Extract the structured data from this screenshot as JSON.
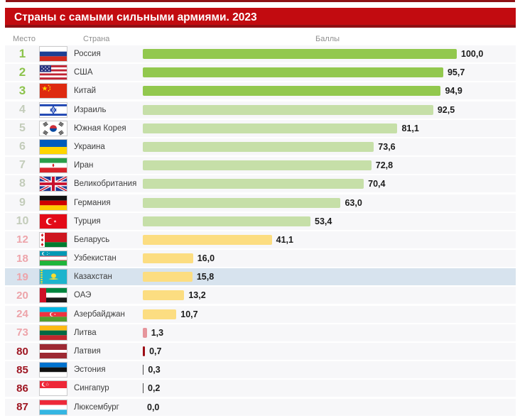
{
  "header": {
    "title": "Страны с самыми сильными армиями. 2023"
  },
  "columns": {
    "rank_label": "Место",
    "country_label": "Страна",
    "score_label": "Баллы"
  },
  "colors": {
    "title_bar": "#c20b10",
    "title_bar_border": "#8e1014",
    "top_line": "#8e1014",
    "row_bg": "#f7f7f9",
    "highlight_row_bg": "#d7e3ee",
    "rank_green": "#8cc34b",
    "rank_pale": "#c3ccba",
    "rank_pink": "#eda4aa",
    "rank_darkred": "#9e1622",
    "bar_green": "#92c84e",
    "bar_lightgreen": "#c6dfa8",
    "bar_yellow": "#fcdd81",
    "bar_pink": "#e6959c",
    "bar_darkred": "#9c0d15",
    "bar_gray": "#4a4a4a"
  },
  "chart_data": {
    "type": "bar",
    "orientation": "horizontal",
    "title": "Страны с самыми сильными армиями. 2023",
    "value_axis": {
      "min": 0,
      "max": 100
    },
    "highlighted_country": "Казахстан",
    "rows": [
      {
        "rank": "1",
        "country": "Россия",
        "flag": "ru",
        "value": 100.0,
        "value_label": "100,0",
        "rank_tier": "green",
        "bar": "bar_green",
        "highlight": false
      },
      {
        "rank": "2",
        "country": "США",
        "flag": "us",
        "value": 95.7,
        "value_label": "95,7",
        "rank_tier": "green",
        "bar": "bar_green",
        "highlight": false
      },
      {
        "rank": "3",
        "country": "Китай",
        "flag": "cn",
        "value": 94.9,
        "value_label": "94,9",
        "rank_tier": "green",
        "bar": "bar_green",
        "highlight": false
      },
      {
        "rank": "4",
        "country": "Израиль",
        "flag": "il",
        "value": 92.5,
        "value_label": "92,5",
        "rank_tier": "pale",
        "bar": "bar_lightgreen",
        "highlight": false
      },
      {
        "rank": "5",
        "country": "Южная Корея",
        "flag": "kr",
        "value": 81.1,
        "value_label": "81,1",
        "rank_tier": "pale",
        "bar": "bar_lightgreen",
        "highlight": false
      },
      {
        "rank": "6",
        "country": "Украина",
        "flag": "ua",
        "value": 73.6,
        "value_label": "73,6",
        "rank_tier": "pale",
        "bar": "bar_lightgreen",
        "highlight": false
      },
      {
        "rank": "7",
        "country": "Иран",
        "flag": "ir",
        "value": 72.8,
        "value_label": "72,8",
        "rank_tier": "pale",
        "bar": "bar_lightgreen",
        "highlight": false
      },
      {
        "rank": "8",
        "country": "Великобритания",
        "flag": "gb",
        "value": 70.4,
        "value_label": "70,4",
        "rank_tier": "pale",
        "bar": "bar_lightgreen",
        "highlight": false
      },
      {
        "rank": "9",
        "country": "Германия",
        "flag": "de",
        "value": 63.0,
        "value_label": "63,0",
        "rank_tier": "pale",
        "bar": "bar_lightgreen",
        "highlight": false
      },
      {
        "rank": "10",
        "country": "Турция",
        "flag": "tr",
        "value": 53.4,
        "value_label": "53,4",
        "rank_tier": "pale",
        "bar": "bar_lightgreen",
        "highlight": false
      },
      {
        "rank": "12",
        "country": "Беларусь",
        "flag": "by",
        "value": 41.1,
        "value_label": "41,1",
        "rank_tier": "pink",
        "bar": "bar_yellow",
        "highlight": false
      },
      {
        "rank": "18",
        "country": "Узбекистан",
        "flag": "uz",
        "value": 16.0,
        "value_label": "16,0",
        "rank_tier": "pink",
        "bar": "bar_yellow",
        "highlight": false
      },
      {
        "rank": "19",
        "country": "Казахстан",
        "flag": "kz",
        "value": 15.8,
        "value_label": "15,8",
        "rank_tier": "pink",
        "bar": "bar_yellow",
        "highlight": true
      },
      {
        "rank": "20",
        "country": "ОАЭ",
        "flag": "ae",
        "value": 13.2,
        "value_label": "13,2",
        "rank_tier": "pink",
        "bar": "bar_yellow",
        "highlight": false
      },
      {
        "rank": "24",
        "country": "Азербайджан",
        "flag": "az",
        "value": 10.7,
        "value_label": "10,7",
        "rank_tier": "pink",
        "bar": "bar_yellow",
        "highlight": false
      },
      {
        "rank": "73",
        "country": "Литва",
        "flag": "lt",
        "value": 1.3,
        "value_label": "1,3",
        "rank_tier": "pink",
        "bar": "bar_pink",
        "highlight": false
      },
      {
        "rank": "80",
        "country": "Латвия",
        "flag": "lv",
        "value": 0.7,
        "value_label": "0,7",
        "rank_tier": "darkred",
        "bar": "bar_darkred",
        "highlight": false
      },
      {
        "rank": "85",
        "country": "Эстония",
        "flag": "ee",
        "value": 0.3,
        "value_label": "0,3",
        "rank_tier": "darkred",
        "bar": "bar_gray",
        "highlight": false
      },
      {
        "rank": "86",
        "country": "Сингапур",
        "flag": "sg",
        "value": 0.2,
        "value_label": "0,2",
        "rank_tier": "darkred",
        "bar": "bar_gray",
        "highlight": false
      },
      {
        "rank": "87",
        "country": "Люксембург",
        "flag": "lu",
        "value": 0.0,
        "value_label": "0,0",
        "rank_tier": "darkred",
        "bar": "none",
        "highlight": false
      }
    ]
  }
}
